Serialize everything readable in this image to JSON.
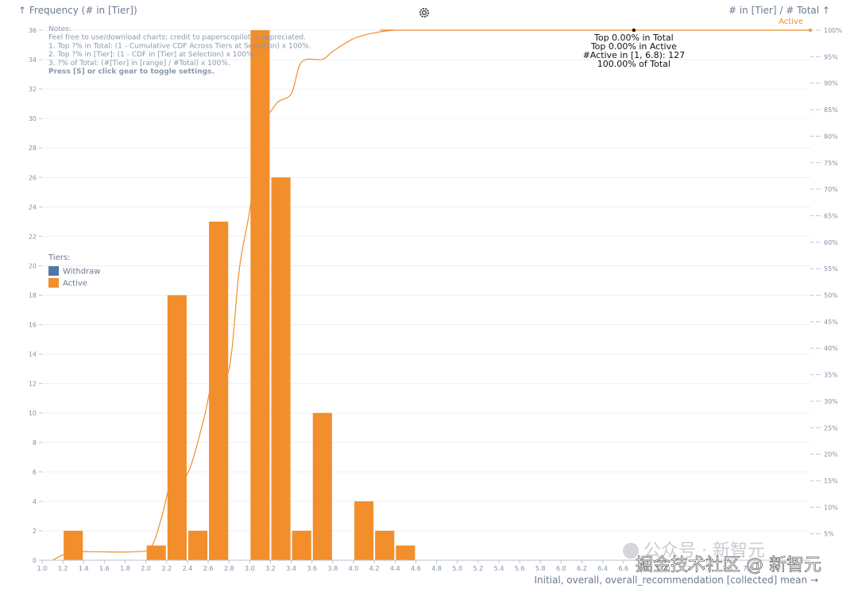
{
  "chart_data": {
    "type": "bar",
    "title_left": "↑ Frequency (# in [Tier])",
    "title_right": "# in [Tier] / # Total ↑",
    "xlabel": "Initial, overall, overall_recommendation [collected] mean →",
    "bin_starts": [
      1.2,
      2.0,
      2.2,
      2.4,
      2.6,
      3.0,
      3.2,
      3.4,
      3.6,
      4.0,
      4.2,
      4.4
    ],
    "bin_width": 0.2,
    "series": [
      {
        "name": "Withdraw",
        "color": "#4e79a7",
        "values": [
          0,
          0,
          0,
          0,
          0,
          0,
          0,
          0,
          0,
          0,
          0,
          0
        ]
      },
      {
        "name": "Active",
        "color": "#f28e2b",
        "values": [
          2,
          1,
          18,
          2,
          23,
          36,
          26,
          2,
          10,
          4,
          2,
          1
        ]
      }
    ],
    "xlim": [
      1.0,
      8.4
    ],
    "ylim": [
      0,
      36
    ],
    "x_ticks": [
      "1.0",
      "1.2",
      "1.4",
      "1.6",
      "1.8",
      "2.0",
      "2.2",
      "2.4",
      "2.6",
      "2.8",
      "3.0",
      "3.2",
      "3.4",
      "3.6",
      "3.8",
      "4.0",
      "4.2",
      "4.4",
      "4.6",
      "4.8",
      "5.0",
      "5.2",
      "5.4",
      "5.6",
      "5.8",
      "6.0",
      "6.2",
      "6.4",
      "6.6",
      "6.8",
      "7.0",
      "7.2",
      "7.4",
      "7.6",
      "7.8"
    ],
    "y_ticks_left": [
      "0",
      "2",
      "4",
      "6",
      "8",
      "10",
      "12",
      "14",
      "16",
      "18",
      "20",
      "22",
      "24",
      "26",
      "28",
      "30",
      "32",
      "34",
      "36"
    ],
    "y_ticks_right": [
      "5%",
      "10%",
      "15%",
      "20%",
      "25%",
      "30%",
      "35%",
      "40%",
      "45%",
      "50%",
      "55%",
      "60%",
      "65%",
      "70%",
      "75%",
      "80%",
      "85%",
      "90%",
      "95%",
      "100%"
    ],
    "cdf_series_name": "Active",
    "cdf_points": [
      [
        1.1,
        0
      ],
      [
        1.2,
        1
      ],
      [
        1.3,
        1.6
      ],
      [
        1.5,
        1.6
      ],
      [
        1.9,
        1.6
      ],
      [
        2.05,
        2.5
      ],
      [
        2.15,
        8
      ],
      [
        2.25,
        15
      ],
      [
        2.4,
        16.3
      ],
      [
        2.55,
        26
      ],
      [
        2.65,
        34
      ],
      [
        2.8,
        36
      ],
      [
        2.9,
        55
      ],
      [
        3.0,
        66
      ],
      [
        3.1,
        80
      ],
      [
        3.25,
        86
      ],
      [
        3.4,
        88
      ],
      [
        3.5,
        94
      ],
      [
        3.7,
        94.5
      ],
      [
        3.8,
        96
      ],
      [
        4.0,
        98.4
      ],
      [
        4.2,
        99.5
      ],
      [
        4.4,
        100
      ],
      [
        4.6,
        100
      ],
      [
        8.4,
        100
      ]
    ],
    "notes": [
      "Notes:",
      "Feel free to use/download charts; credit to paperscopilot is appreciated.",
      "1. Top ?% in Total: (1 - Cumulative CDF Across Tiers at Selection) x 100%.",
      "2. Top ?% in [Tier]: (1 - CDF in [Tier] at Selection) x 100%.",
      "3. ?% of Total: (#[Tier] in [range] / #Total) x 100%.",
      "Press [S] or click gear to toggle settings."
    ],
    "legend_title": "Tiers:",
    "legend": [
      "Withdraw",
      "Active"
    ],
    "tooltip_x": 6.7,
    "tooltip_lines": [
      "Top 0.00% in Total",
      "Top 0.00% in Active",
      "#Active in [1, 6.8): 127",
      "100.00% of Total"
    ],
    "active_line_label": "Active"
  },
  "watermark": {
    "line1": "公众号 · 新智元",
    "line2": "掘金技术社区 @ 新智元"
  }
}
